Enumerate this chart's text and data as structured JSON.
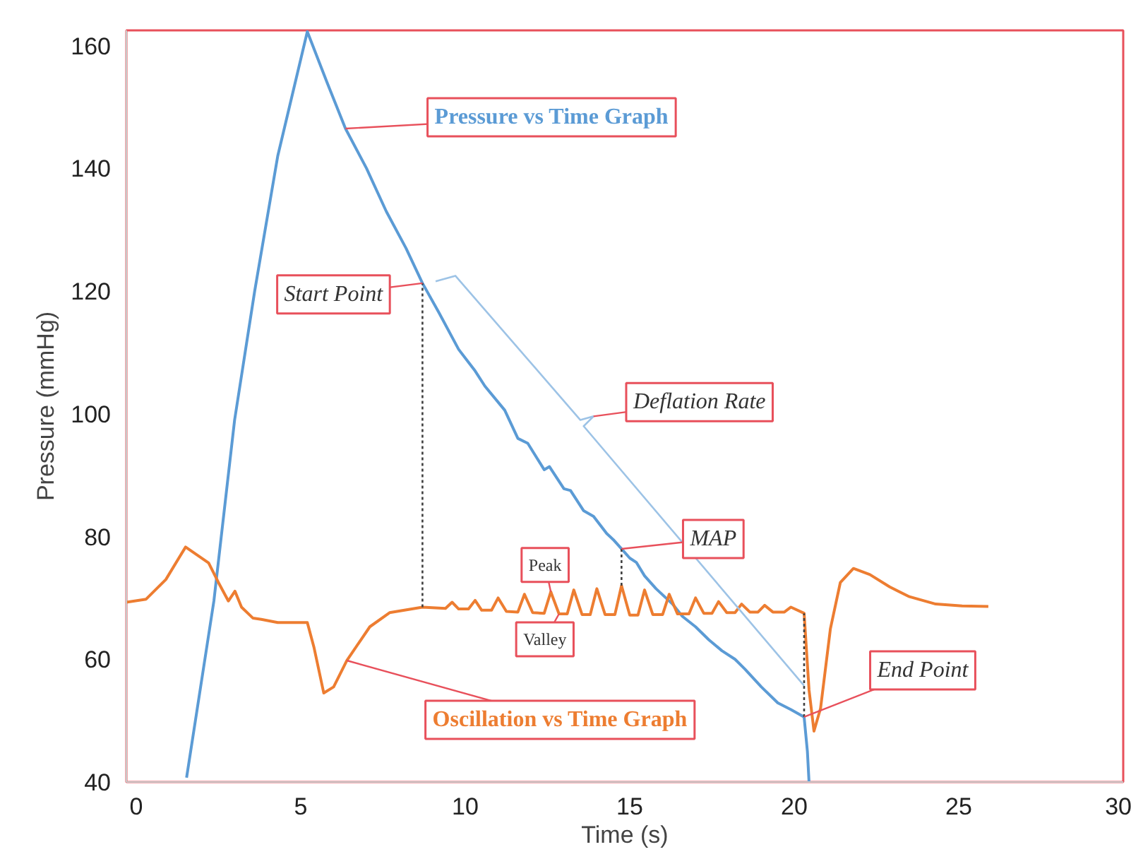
{
  "chart_data": {
    "type": "line",
    "xlabel": "Time (s)",
    "ylabel": "Pressure (mmHg)",
    "xlim": [
      -0.3,
      30
    ],
    "ylim": [
      40,
      162.5
    ],
    "xticks": [
      0,
      5,
      10,
      15,
      20,
      25,
      30
    ],
    "yticks": [
      40,
      60,
      80,
      100,
      120,
      140,
      160
    ],
    "grid": false,
    "series": [
      {
        "name": "Pressure vs Time Graph",
        "color": "#5b9bd5",
        "x": [
          1.53,
          2.36,
          2.99,
          3.6,
          4.3,
          5.2,
          5.8,
          6.36,
          7.0,
          7.6,
          8.2,
          8.7,
          9.2,
          9.8,
          10.3,
          10.6,
          11.2,
          11.6,
          11.9,
          12.4,
          12.56,
          13.0,
          13.2,
          13.6,
          13.9,
          14.3,
          14.5,
          14.75,
          15.0,
          15.2,
          15.45,
          15.8,
          16.3,
          16.6,
          17.0,
          17.4,
          17.8,
          18.2,
          18.5,
          19.0,
          19.5,
          19.9,
          20.3,
          20.4,
          20.45
        ],
        "values": [
          40.7,
          69.5,
          99,
          120,
          142,
          162.3,
          154,
          146.5,
          140,
          133,
          127,
          121.3,
          116.5,
          110.5,
          107,
          104.5,
          100.6,
          96,
          95.2,
          90.9,
          91.4,
          87.8,
          87.5,
          84.2,
          83.3,
          80.5,
          79.5,
          78,
          76.5,
          75.8,
          73.6,
          71.5,
          69,
          67,
          65.3,
          63.2,
          61.4,
          60,
          58.4,
          55.5,
          52.9,
          51.8,
          50.6,
          45,
          40
        ]
      },
      {
        "name": "Oscillation vs Time Graph",
        "color": "#ed7d31",
        "x": [
          -0.3,
          0.3,
          0.9,
          1.5,
          2.2,
          2.5,
          2.8,
          3.0,
          3.2,
          3.55,
          3.8,
          4.3,
          5.2,
          5.4,
          5.7,
          6.0,
          6.4,
          7.1,
          7.7,
          8.7,
          9.4,
          9.6,
          9.8,
          10.1,
          10.3,
          10.5,
          10.8,
          11.0,
          11.25,
          11.6,
          11.8,
          12.05,
          12.4,
          12.6,
          12.85,
          13.1,
          13.3,
          13.55,
          13.8,
          14.0,
          14.25,
          14.55,
          14.75,
          15.0,
          15.25,
          15.45,
          15.7,
          16.0,
          16.2,
          16.45,
          16.8,
          17.0,
          17.25,
          17.5,
          17.7,
          17.95,
          18.2,
          18.4,
          18.65,
          18.9,
          19.1,
          19.35,
          19.7,
          19.9,
          20.3,
          20.45,
          20.6,
          20.8,
          21.1,
          21.4,
          21.8,
          22.3,
          22.9,
          23.5,
          24.3,
          25.1,
          25.9
        ],
        "values": [
          69.3,
          69.8,
          73,
          78.3,
          75.7,
          72.5,
          69.5,
          71.1,
          68.5,
          66.7,
          66.5,
          66,
          66,
          62,
          54.5,
          55.5,
          59.8,
          65.3,
          67.6,
          68.5,
          68.3,
          69.3,
          68.2,
          68.2,
          69.6,
          68.0,
          68.0,
          70,
          67.8,
          67.7,
          70.6,
          67.6,
          67.5,
          71,
          67.4,
          67.4,
          71.3,
          67.3,
          67.3,
          71.5,
          67.3,
          67.3,
          72,
          67.2,
          67.2,
          71.3,
          67.3,
          67.3,
          70.6,
          67.4,
          67.4,
          70,
          67.5,
          67.5,
          69.4,
          67.6,
          67.6,
          69,
          67.7,
          67.7,
          68.8,
          67.7,
          67.7,
          68.5,
          67.5,
          55,
          48.3,
          52,
          65,
          72.5,
          74.8,
          73.8,
          71.8,
          70.2,
          69,
          68.7,
          68.6
        ]
      },
      {
        "color": "#404040",
        "line_style": "dotted",
        "x": [
          8.7,
          8.7
        ],
        "values": [
          68.5,
          121.3
        ]
      },
      {
        "color": "#404040",
        "line_style": "dotted",
        "x": [
          14.75,
          14.75
        ],
        "values": [
          72,
          78
        ]
      },
      {
        "color": "#404040",
        "line_style": "dotted",
        "x": [
          20.3,
          20.3
        ],
        "values": [
          50.6,
          67.5
        ]
      },
      {
        "color": "#9dc3e6",
        "line_style": "solid",
        "x": [
          9.1,
          9.7,
          13.5,
          13.9,
          13.6,
          20.3
        ],
        "values": [
          121.6,
          122.5,
          99,
          99.6,
          98,
          55.7
        ]
      }
    ],
    "annotations": [
      {
        "text": "Start Point",
        "x": 8.7,
        "y": 121.3
      },
      {
        "text": "Deflation Rate",
        "x": 13.9,
        "y": 99.6
      },
      {
        "text": "MAP",
        "x": 14.75,
        "y": 78
      },
      {
        "text": "Peak",
        "x": 12.6,
        "y": 71
      },
      {
        "text": "Valley",
        "x": 12.85,
        "y": 67.4
      },
      {
        "text": "End Point",
        "x": 20.3,
        "y": 50.6
      }
    ]
  }
}
